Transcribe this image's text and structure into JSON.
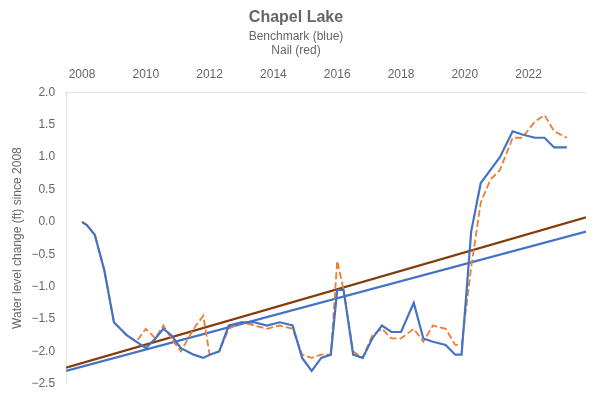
{
  "chart_data": {
    "type": "line",
    "title": "Chapel Lake",
    "subtitle": [
      "Benchmark (blue)",
      "Nail (red)"
    ],
    "ylabel": "Water level change (ft) since 2008",
    "xlim": [
      2007.5,
      2023.8
    ],
    "xticks": [
      2008,
      2010,
      2012,
      2014,
      2016,
      2018,
      2020,
      2022
    ],
    "ylim": [
      -2.5,
      2.0
    ],
    "yticks": [
      {
        "value": -2.5,
        "label": "−2.5"
      },
      {
        "value": -2.0,
        "label": "−2.0"
      },
      {
        "value": -1.5,
        "label": "−1.5"
      },
      {
        "value": -1.0,
        "label": "−1.0"
      },
      {
        "value": -0.5,
        "label": "−0.5"
      },
      {
        "value": 0.0,
        "label": "0.0"
      },
      0.5,
      {
        "value": 1.0,
        "label": "1.0"
      },
      1.5,
      {
        "value": 2.0,
        "label": "2.0"
      }
    ],
    "grid": false,
    "series": [
      {
        "color": "#843c0c",
        "line_style": "solid",
        "x": [
          2007.5,
          2023.8
        ],
        "values": [
          -2.25,
          0.07
        ]
      },
      {
        "color": "#4472c4",
        "line_style": "solid",
        "x": [
          2007.5,
          2023.8
        ],
        "values": [
          -2.3,
          -0.15
        ]
      },
      {
        "color": "#ed7d31",
        "line_style": "dashed",
        "x": [
          2008.0,
          2008.15,
          2008.4,
          2008.7,
          2009.0,
          2009.4,
          2009.7,
          2010.0,
          2010.3,
          2010.55,
          2010.8,
          2011.1,
          2011.5,
          2011.8,
          2012.0,
          2012.3,
          2012.6,
          2013.0,
          2013.4,
          2013.8,
          2014.2,
          2014.6,
          2014.9,
          2015.2,
          2015.5,
          2015.8,
          2016.0,
          2016.2,
          2016.5,
          2016.8,
          2017.1,
          2017.4,
          2017.7,
          2018.0,
          2018.4,
          2018.7,
          2019.0,
          2019.4,
          2019.7,
          2019.9,
          2020.2,
          2020.5,
          2020.8,
          2021.1,
          2021.5,
          2021.8,
          2022.2,
          2022.5,
          2022.8,
          2023.2
        ],
        "values": [
          0.0,
          -0.05,
          -0.2,
          -0.75,
          -1.55,
          -1.75,
          -1.85,
          -1.65,
          -1.8,
          -1.6,
          -1.8,
          -2.0,
          -1.65,
          -1.45,
          -2.05,
          -2.0,
          -1.65,
          -1.55,
          -1.6,
          -1.65,
          -1.6,
          -1.65,
          -2.05,
          -2.1,
          -2.05,
          -2.05,
          -0.6,
          -1.05,
          -2.0,
          -2.1,
          -1.75,
          -1.65,
          -1.8,
          -1.8,
          -1.65,
          -1.85,
          -1.6,
          -1.65,
          -1.9,
          -1.9,
          -0.7,
          0.3,
          0.65,
          0.8,
          1.3,
          1.3,
          1.55,
          1.65,
          1.4,
          1.3
        ]
      },
      {
        "color": "#4472c4",
        "line_style": "solid",
        "x": [
          2008.0,
          2008.15,
          2008.4,
          2008.7,
          2009.0,
          2009.4,
          2009.7,
          2010.0,
          2010.3,
          2010.55,
          2010.8,
          2011.1,
          2011.5,
          2011.8,
          2012.0,
          2012.3,
          2012.6,
          2013.0,
          2013.4,
          2013.8,
          2014.2,
          2014.6,
          2014.9,
          2015.2,
          2015.5,
          2015.8,
          2016.0,
          2016.2,
          2016.5,
          2016.8,
          2017.1,
          2017.4,
          2017.7,
          2018.0,
          2018.4,
          2018.7,
          2019.0,
          2019.4,
          2019.7,
          2019.9,
          2020.2,
          2020.5,
          2020.8,
          2021.1,
          2021.5,
          2021.8,
          2022.2,
          2022.5,
          2022.8,
          2023.2
        ],
        "values": [
          0.0,
          -0.05,
          -0.2,
          -0.75,
          -1.55,
          -1.75,
          -1.85,
          -1.95,
          -1.8,
          -1.65,
          -1.75,
          -1.95,
          -2.05,
          -2.1,
          -2.05,
          -2.0,
          -1.6,
          -1.55,
          -1.55,
          -1.6,
          -1.55,
          -1.6,
          -2.1,
          -2.3,
          -2.1,
          -2.05,
          -1.05,
          -1.05,
          -2.05,
          -2.1,
          -1.8,
          -1.6,
          -1.7,
          -1.7,
          -1.25,
          -1.8,
          -1.85,
          -1.9,
          -2.05,
          -2.05,
          -0.15,
          0.6,
          0.8,
          1.0,
          1.4,
          1.35,
          1.3,
          1.3,
          1.15,
          1.15
        ]
      }
    ]
  }
}
